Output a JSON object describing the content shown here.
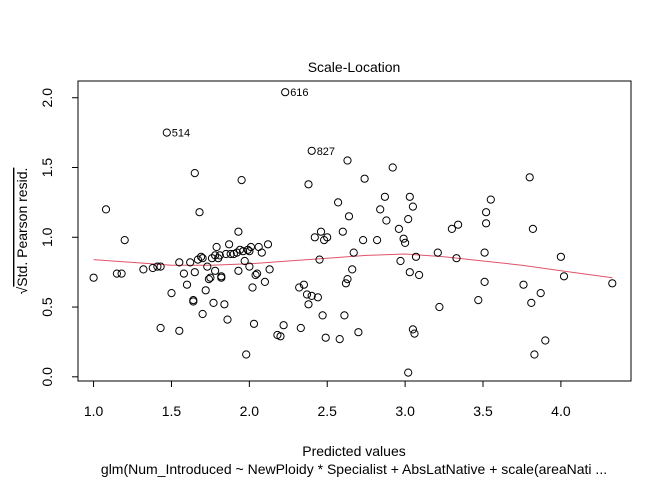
{
  "chart_data": {
    "type": "scatter",
    "title": "Scale-Location",
    "xlabel": "Predicted values",
    "ylabel_radical": "√",
    "ylabel": "Std. Pearson resid.",
    "caption": "glm(Num_Introduced ~ NewPloidy * Specialist + AbsLatNative + scale(areaNati ...",
    "xlim": [
      0.9,
      4.45
    ],
    "ylim": [
      -0.03,
      2.12
    ],
    "x_ticks": [
      1.0,
      1.5,
      2.0,
      2.5,
      3.0,
      3.5,
      4.0
    ],
    "x_tick_labels": [
      "1.0",
      "1.5",
      "2.0",
      "2.5",
      "3.0",
      "3.5",
      "4.0"
    ],
    "y_ticks": [
      0.0,
      0.5,
      1.0,
      1.5,
      2.0
    ],
    "y_tick_labels": [
      "0.0",
      "0.5",
      "1.0",
      "1.5",
      "2.0"
    ],
    "grid": false,
    "point_color": "#000000",
    "smooth_color": "#DF536B",
    "points": [
      [
        1.0,
        0.71
      ],
      [
        1.08,
        1.2
      ],
      [
        1.15,
        0.74
      ],
      [
        1.18,
        0.74
      ],
      [
        1.2,
        0.98
      ],
      [
        1.32,
        0.77
      ],
      [
        1.38,
        0.78
      ],
      [
        1.41,
        0.79
      ],
      [
        1.43,
        0.35
      ],
      [
        1.43,
        0.79
      ],
      [
        1.47,
        1.75
      ],
      [
        1.5,
        0.6
      ],
      [
        1.55,
        0.33
      ],
      [
        1.55,
        0.82
      ],
      [
        1.58,
        0.74
      ],
      [
        1.6,
        0.66
      ],
      [
        1.62,
        0.82
      ],
      [
        1.64,
        0.55
      ],
      [
        1.64,
        0.54
      ],
      [
        1.65,
        1.46
      ],
      [
        1.65,
        0.75
      ],
      [
        1.67,
        0.84
      ],
      [
        1.68,
        1.18
      ],
      [
        1.69,
        0.86
      ],
      [
        1.7,
        0.85
      ],
      [
        1.7,
        0.45
      ],
      [
        1.72,
        0.62
      ],
      [
        1.73,
        0.79
      ],
      [
        1.74,
        0.7
      ],
      [
        1.75,
        0.71
      ],
      [
        1.76,
        0.85
      ],
      [
        1.77,
        0.53
      ],
      [
        1.78,
        0.76
      ],
      [
        1.78,
        0.87
      ],
      [
        1.79,
        0.93
      ],
      [
        1.8,
        0.85
      ],
      [
        1.81,
        0.87
      ],
      [
        1.82,
        0.72
      ],
      [
        1.82,
        0.71
      ],
      [
        1.84,
        0.52
      ],
      [
        1.85,
        0.88
      ],
      [
        1.86,
        0.41
      ],
      [
        1.87,
        0.95
      ],
      [
        1.88,
        0.88
      ],
      [
        1.9,
        0.88
      ],
      [
        1.92,
        0.89
      ],
      [
        1.93,
        1.04
      ],
      [
        1.93,
        0.76
      ],
      [
        1.94,
        0.91
      ],
      [
        1.95,
        1.41
      ],
      [
        1.96,
        0.9
      ],
      [
        1.97,
        0.83
      ],
      [
        1.98,
        0.16
      ],
      [
        1.99,
        0.91
      ],
      [
        2.0,
        0.9
      ],
      [
        2.0,
        0.79
      ],
      [
        2.01,
        0.93
      ],
      [
        2.02,
        0.64
      ],
      [
        2.03,
        0.38
      ],
      [
        2.04,
        0.73
      ],
      [
        2.05,
        0.74
      ],
      [
        2.06,
        0.93
      ],
      [
        2.08,
        0.89
      ],
      [
        2.1,
        0.68
      ],
      [
        2.12,
        0.95
      ],
      [
        2.13,
        0.77
      ],
      [
        2.18,
        0.3
      ],
      [
        2.2,
        0.29
      ],
      [
        2.22,
        0.37
      ],
      [
        2.23,
        2.04
      ],
      [
        2.32,
        0.64
      ],
      [
        2.33,
        0.35
      ],
      [
        2.35,
        0.66
      ],
      [
        2.37,
        0.59
      ],
      [
        2.38,
        1.38
      ],
      [
        2.38,
        0.52
      ],
      [
        2.4,
        1.62
      ],
      [
        2.4,
        0.58
      ],
      [
        2.42,
        1.0
      ],
      [
        2.44,
        0.57
      ],
      [
        2.45,
        0.84
      ],
      [
        2.46,
        1.04
      ],
      [
        2.47,
        0.44
      ],
      [
        2.48,
        0.98
      ],
      [
        2.49,
        0.28
      ],
      [
        2.5,
        1.0
      ],
      [
        2.57,
        1.25
      ],
      [
        2.58,
        0.27
      ],
      [
        2.6,
        1.04
      ],
      [
        2.61,
        0.44
      ],
      [
        2.62,
        0.67
      ],
      [
        2.63,
        1.55
      ],
      [
        2.63,
        0.7
      ],
      [
        2.64,
        1.15
      ],
      [
        2.66,
        0.77
      ],
      [
        2.67,
        0.89
      ],
      [
        2.7,
        0.32
      ],
      [
        2.73,
        0.98
      ],
      [
        2.74,
        1.42
      ],
      [
        2.82,
        0.98
      ],
      [
        2.84,
        1.2
      ],
      [
        2.87,
        1.29
      ],
      [
        2.88,
        1.12
      ],
      [
        2.92,
        1.5
      ],
      [
        2.96,
        1.06
      ],
      [
        2.97,
        0.83
      ],
      [
        2.99,
        0.99
      ],
      [
        3.0,
        0.96
      ],
      [
        3.02,
        1.13
      ],
      [
        3.02,
        0.03
      ],
      [
        3.03,
        1.29
      ],
      [
        3.03,
        0.75
      ],
      [
        3.05,
        1.22
      ],
      [
        3.05,
        0.34
      ],
      [
        3.06,
        0.31
      ],
      [
        3.07,
        0.86
      ],
      [
        3.09,
        0.73
      ],
      [
        3.21,
        0.89
      ],
      [
        3.22,
        0.5
      ],
      [
        3.3,
        1.06
      ],
      [
        3.33,
        0.85
      ],
      [
        3.34,
        1.09
      ],
      [
        3.47,
        0.55
      ],
      [
        3.51,
        0.89
      ],
      [
        3.51,
        0.68
      ],
      [
        3.52,
        1.18
      ],
      [
        3.52,
        1.1
      ],
      [
        3.55,
        1.27
      ],
      [
        3.76,
        0.66
      ],
      [
        3.8,
        1.43
      ],
      [
        3.81,
        0.53
      ],
      [
        3.82,
        1.06
      ],
      [
        3.83,
        0.16
      ],
      [
        3.87,
        0.6
      ],
      [
        3.9,
        0.26
      ],
      [
        4.0,
        0.86
      ],
      [
        4.02,
        0.72
      ],
      [
        4.33,
        0.67
      ]
    ],
    "smooth_line": [
      [
        1.0,
        0.84
      ],
      [
        1.25,
        0.82
      ],
      [
        1.5,
        0.8
      ],
      [
        1.75,
        0.8
      ],
      [
        2.0,
        0.81
      ],
      [
        2.25,
        0.83
      ],
      [
        2.5,
        0.85
      ],
      [
        2.75,
        0.87
      ],
      [
        3.0,
        0.88
      ],
      [
        3.25,
        0.86
      ],
      [
        3.5,
        0.83
      ],
      [
        3.75,
        0.8
      ],
      [
        4.0,
        0.76
      ],
      [
        4.33,
        0.71
      ]
    ],
    "annotations": [
      {
        "label": "616",
        "x": 2.23,
        "y": 2.04
      },
      {
        "label": "514",
        "x": 1.47,
        "y": 1.75
      },
      {
        "label": "827",
        "x": 2.4,
        "y": 1.62
      }
    ]
  }
}
